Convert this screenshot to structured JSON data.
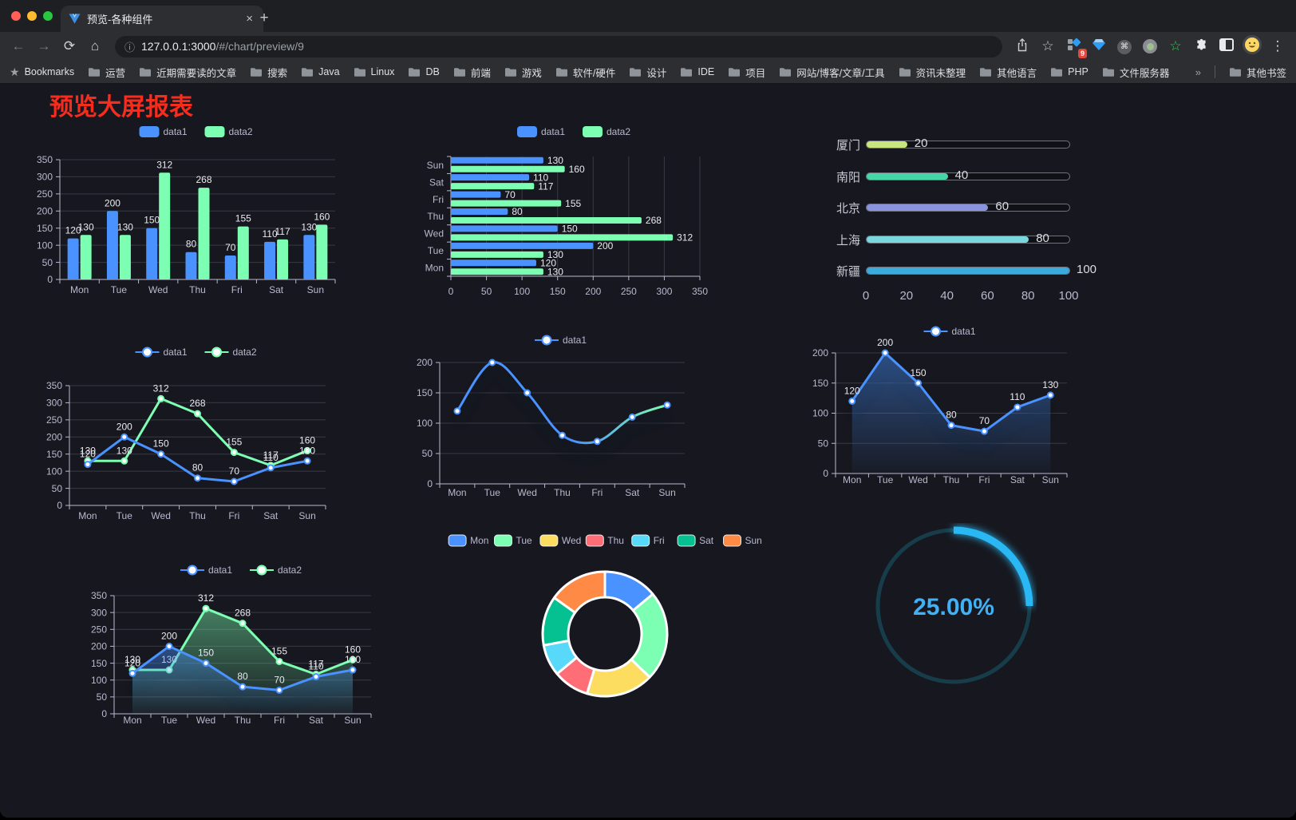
{
  "browser": {
    "tab_title": "预览-各种组件",
    "url_host": "127.0.0.1:3000",
    "url_path": "/#/chart/preview/9",
    "bookmarks_label": "Bookmarks",
    "bookmarks": [
      "运营",
      "近期需要读的文章",
      "搜索",
      "Java",
      "Linux",
      "DB",
      "前端",
      "游戏",
      "软件/硬件",
      "设计",
      "IDE",
      "项目",
      "网站/博客/文章/工具",
      "资讯未整理",
      "其他语言",
      "PHP",
      "文件服务器"
    ],
    "bookmarks_overflow": "»",
    "other_bookmarks": "其他书签",
    "extension_badge": "9",
    "icons": {
      "back": "←",
      "forward": "→",
      "reload": "⟳",
      "home": "⌂",
      "info": "ⓘ",
      "bookmark_star": "☆",
      "green_star": "☆",
      "cmd": "⌘",
      "menu": "⋮",
      "newtab": "+",
      "close": "×",
      "star_filled": "★"
    }
  },
  "page": {
    "title": "预览大屏报表",
    "title_color": "#f72c1d"
  },
  "chart_data": [
    {
      "id": "grouped-bar",
      "type": "bar",
      "categories": [
        "Mon",
        "Tue",
        "Wed",
        "Thu",
        "Fri",
        "Sat",
        "Sun"
      ],
      "series": [
        {
          "name": "data1",
          "color": "#4992ff",
          "values": [
            120,
            200,
            150,
            80,
            70,
            110,
            130
          ]
        },
        {
          "name": "data2",
          "color": "#7cffb2",
          "values": [
            130,
            130,
            312,
            268,
            155,
            117,
            160
          ]
        }
      ],
      "ylim": [
        0,
        350
      ],
      "yticks": [
        0,
        50,
        100,
        150,
        200,
        250,
        300,
        350
      ],
      "legend_position": "top",
      "grid": true,
      "labels": true
    },
    {
      "id": "grouped-bar-horizontal",
      "type": "bar-horizontal",
      "categories": [
        "Mon",
        "Tue",
        "Wed",
        "Thu",
        "Fri",
        "Sat",
        "Sun"
      ],
      "series": [
        {
          "name": "data1",
          "color": "#4992ff",
          "values": [
            120,
            200,
            150,
            80,
            70,
            110,
            130
          ]
        },
        {
          "name": "data2",
          "color": "#7cffb2",
          "values": [
            130,
            130,
            312,
            268,
            155,
            117,
            160
          ]
        }
      ],
      "xlim": [
        0,
        350
      ],
      "xticks": [
        0,
        50,
        100,
        150,
        200,
        250,
        300,
        350
      ],
      "legend_position": "top",
      "grid": true,
      "labels": true
    },
    {
      "id": "city-progress",
      "type": "progress-bars",
      "items": [
        {
          "label": "厦门",
          "value": 20,
          "color": "#c9e57e"
        },
        {
          "label": "南阳",
          "value": 40,
          "color": "#45d6a5"
        },
        {
          "label": "北京",
          "value": 60,
          "color": "#8a93de"
        },
        {
          "label": "上海",
          "value": 80,
          "color": "#79d8de"
        },
        {
          "label": "新疆",
          "value": 100,
          "color": "#3aabdd"
        }
      ],
      "max": 100,
      "xticks": [
        0,
        20,
        40,
        60,
        80,
        100
      ]
    },
    {
      "id": "two-series-line",
      "type": "line",
      "categories": [
        "Mon",
        "Tue",
        "Wed",
        "Thu",
        "Fri",
        "Sat",
        "Sun"
      ],
      "series": [
        {
          "name": "data1",
          "color": "#4992ff",
          "values": [
            120,
            200,
            150,
            80,
            70,
            110,
            130
          ]
        },
        {
          "name": "data2",
          "color": "#7cffb2",
          "values": [
            130,
            130,
            312,
            268,
            155,
            117,
            160
          ]
        }
      ],
      "ylim": [
        0,
        350
      ],
      "yticks": [
        0,
        50,
        100,
        150,
        200,
        250,
        300,
        350
      ],
      "legend_position": "top",
      "grid": true,
      "labels": true
    },
    {
      "id": "gradient-smooth-line",
      "type": "smooth-line",
      "categories": [
        "Mon",
        "Tue",
        "Wed",
        "Thu",
        "Fri",
        "Sat",
        "Sun"
      ],
      "series": [
        {
          "name": "data1",
          "color": "#4992ff",
          "color_gradient": [
            "#4992ff",
            "#7cffb2"
          ],
          "values": [
            120,
            200,
            150,
            80,
            70,
            110,
            130
          ]
        }
      ],
      "ylim": [
        0,
        200
      ],
      "yticks": [
        0,
        50,
        100,
        150,
        200
      ],
      "legend_position": "top",
      "grid": true,
      "labels": false
    },
    {
      "id": "area-line",
      "type": "area",
      "categories": [
        "Mon",
        "Tue",
        "Wed",
        "Thu",
        "Fri",
        "Sat",
        "Sun"
      ],
      "series": [
        {
          "name": "data1",
          "color": "#4992ff",
          "values": [
            120,
            200,
            150,
            80,
            70,
            110,
            130
          ]
        }
      ],
      "ylim": [
        0,
        200
      ],
      "yticks": [
        0,
        50,
        100,
        150,
        200
      ],
      "legend_position": "top",
      "grid": true,
      "labels": true
    },
    {
      "id": "two-series-area",
      "type": "area",
      "categories": [
        "Mon",
        "Tue",
        "Wed",
        "Thu",
        "Fri",
        "Sat",
        "Sun"
      ],
      "series": [
        {
          "name": "data1",
          "color": "#4992ff",
          "values": [
            120,
            200,
            150,
            80,
            70,
            110,
            130
          ]
        },
        {
          "name": "data2",
          "color": "#7cffb2",
          "values": [
            130,
            130,
            312,
            268,
            155,
            117,
            160
          ]
        }
      ],
      "ylim": [
        0,
        350
      ],
      "yticks": [
        0,
        50,
        100,
        150,
        200,
        250,
        300,
        350
      ],
      "legend_position": "top",
      "grid": true,
      "labels": true
    },
    {
      "id": "week-donut",
      "type": "pie",
      "donut": true,
      "categories": [
        "Mon",
        "Tue",
        "Wed",
        "Thu",
        "Fri",
        "Sat",
        "Sun"
      ],
      "values": [
        120,
        200,
        150,
        80,
        70,
        110,
        130
      ],
      "colors": [
        "#4992ff",
        "#7cffb2",
        "#fddd60",
        "#ff6e76",
        "#58d9f9",
        "#05c091",
        "#ff8a45"
      ],
      "legend_position": "top"
    },
    {
      "id": "percent-gauge",
      "type": "gauge",
      "value": 25,
      "display": "25.00%",
      "color": "#2ab8f5",
      "track_color": "#173d4a",
      "text_color": "#41b1f5"
    }
  ]
}
